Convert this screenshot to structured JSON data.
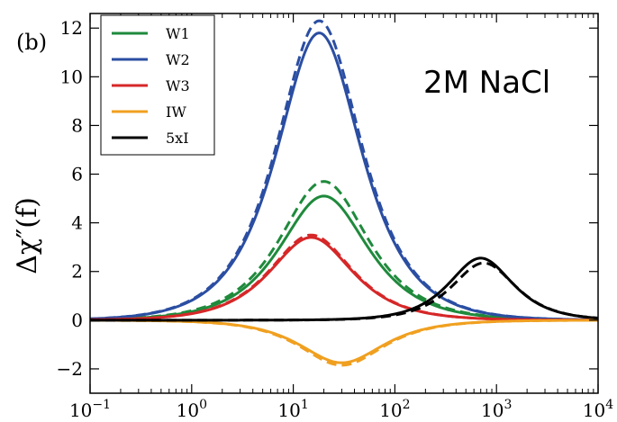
{
  "chart_data": {
    "type": "line",
    "panel_label": "(b)",
    "annotation": "2M NaCl",
    "ylabel": "Δχ″(f)",
    "xlabel": "",
    "xscale": "log",
    "xlim": [
      0.1,
      10000
    ],
    "ylim": [
      -3,
      12.6
    ],
    "x_ticks": [
      {
        "value": 0.1,
        "base": "10",
        "exp": "−1"
      },
      {
        "value": 1,
        "base": "10",
        "exp": "0"
      },
      {
        "value": 10,
        "base": "10",
        "exp": "1"
      },
      {
        "value": 100,
        "base": "10",
        "exp": "2"
      },
      {
        "value": 1000,
        "base": "10",
        "exp": "3"
      },
      {
        "value": 10000,
        "base": "10",
        "exp": "4"
      }
    ],
    "y_ticks": [
      {
        "value": -2,
        "label": "−2"
      },
      {
        "value": 0,
        "label": "0"
      },
      {
        "value": 2,
        "label": "2"
      },
      {
        "value": 4,
        "label": "4"
      },
      {
        "value": 6,
        "label": "6"
      },
      {
        "value": 8,
        "label": "8"
      },
      {
        "value": 10,
        "label": "10"
      },
      {
        "value": 12,
        "label": "12"
      }
    ],
    "legend": {
      "position": "top-left"
    },
    "series": [
      {
        "name": "W1",
        "color": "#1f8a3c",
        "solid": {
          "peak_x": 20,
          "peak_y": 5.1
        },
        "dashed": {
          "peak_x": 20,
          "peak_y": 5.7
        }
      },
      {
        "name": "W2",
        "color": "#2b4ea2",
        "solid": {
          "peak_x": 18,
          "peak_y": 11.8
        },
        "dashed": {
          "peak_x": 18,
          "peak_y": 12.3
        }
      },
      {
        "name": "W3",
        "color": "#d62728",
        "solid": {
          "peak_x": 15,
          "peak_y": 3.4
        },
        "dashed": {
          "peak_x": 15,
          "peak_y": 3.5
        }
      },
      {
        "name": "IW",
        "color": "#f0a020",
        "solid": {
          "peak_x": 30,
          "peak_y": -1.75
        },
        "dashed": {
          "peak_x": 30,
          "peak_y": -1.85
        }
      },
      {
        "name": "5xI",
        "color": "#000000",
        "solid": {
          "peak_x": 700,
          "peak_y": 2.55
        },
        "dashed": {
          "peak_x": 750,
          "peak_y": 2.35
        }
      }
    ]
  }
}
